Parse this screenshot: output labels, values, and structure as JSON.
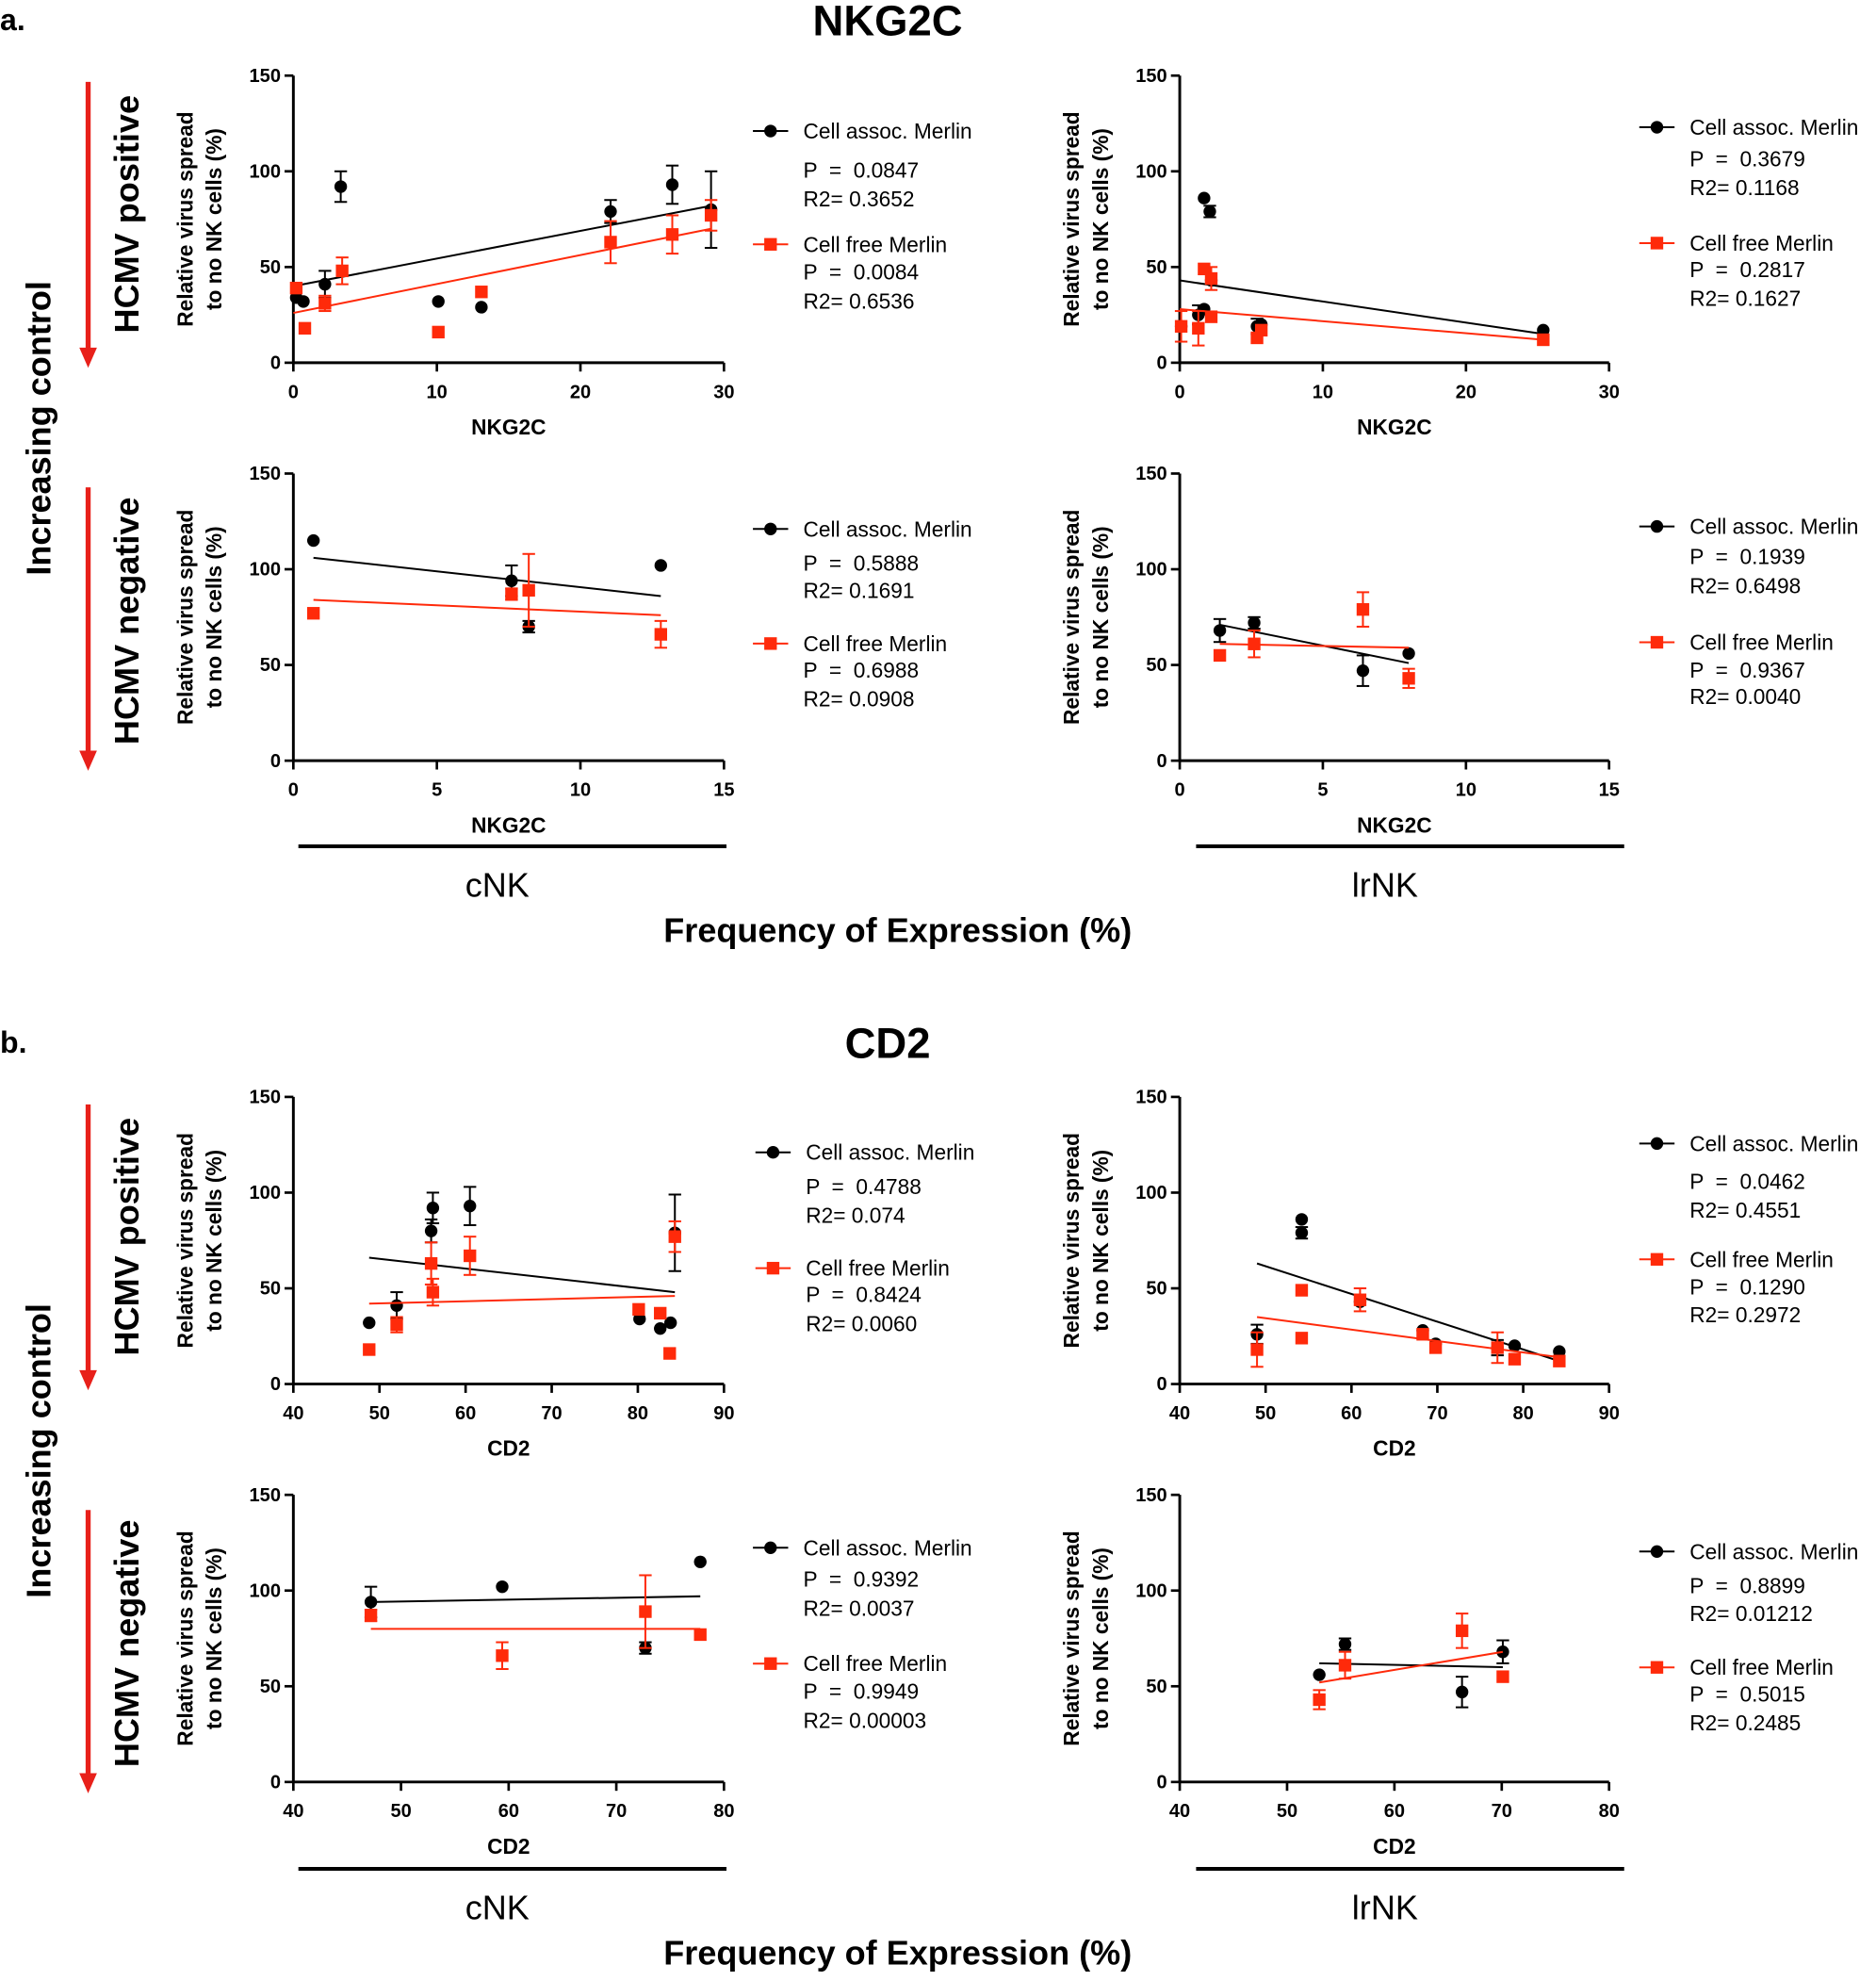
{
  "colors": {
    "cell_assoc": "#000000",
    "cell_free": "#ff2a0a",
    "arrow": "#e8201a"
  },
  "sections": [
    {
      "label": "a.",
      "title": "NKG2C",
      "groups": [
        "cNK",
        "lrNK"
      ],
      "footer": "Frequency of Expression (%)",
      "side_label": "Increasing control",
      "row_labels": [
        "HCMV positive",
        "HCMV negative"
      ]
    },
    {
      "label": "b.",
      "title": "CD2",
      "groups": [
        "cNK",
        "lrNK"
      ],
      "footer": "Frequency of Expression (%)",
      "side_label": "Increasing control",
      "row_labels": [
        "HCMV positive",
        "HCMV negative"
      ]
    }
  ],
  "chart_data": [
    {
      "type": "scatter",
      "panel": "a-cNK-HCMV-positive",
      "xlabel": "NKG2C",
      "ylabel": [
        "Relative virus spread",
        "to no NK cells (%)"
      ],
      "xlim": [
        0,
        30
      ],
      "xticks": [
        0,
        10,
        20,
        30
      ],
      "ylim": [
        0,
        150
      ],
      "yticks": [
        0,
        50,
        100,
        150
      ],
      "series": [
        {
          "name": "Cell assoc. Merlin",
          "marker": "circle",
          "P": "P  =  0.0847",
          "R2": "R2= 0.3652",
          "fit": [
            [
              0,
              40
            ],
            [
              29.1,
              82
            ]
          ],
          "points": [
            [
              0.2,
              34,
              0
            ],
            [
              0.7,
              32,
              0
            ],
            [
              2.2,
              41,
              7
            ],
            [
              3.3,
              92,
              8
            ],
            [
              10.1,
              32,
              0
            ],
            [
              13.1,
              29,
              0
            ],
            [
              22.1,
              79,
              6
            ],
            [
              26.4,
              93,
              10
            ],
            [
              29.1,
              80,
              20
            ]
          ]
        },
        {
          "name": "Cell free Merlin",
          "marker": "square",
          "P": "P  =  0.0084",
          "R2": "R2= 0.6536",
          "fit": [
            [
              0,
              26
            ],
            [
              29.1,
              70
            ]
          ],
          "points": [
            [
              0.2,
              39,
              0
            ],
            [
              0.8,
              18,
              0
            ],
            [
              2.2,
              31,
              4
            ],
            [
              3.4,
              48,
              7
            ],
            [
              10.1,
              16,
              0
            ],
            [
              13.1,
              37,
              0
            ],
            [
              22.1,
              63,
              11
            ],
            [
              26.4,
              67,
              10
            ],
            [
              29.1,
              77,
              8
            ]
          ]
        }
      ]
    },
    {
      "type": "scatter",
      "panel": "a-lrNK-HCMV-positive",
      "xlabel": "NKG2C",
      "ylabel": [
        "Relative virus spread",
        "to no NK cells (%)"
      ],
      "xlim": [
        0,
        30
      ],
      "xticks": [
        0,
        10,
        20,
        30
      ],
      "ylim": [
        0,
        150
      ],
      "yticks": [
        0,
        50,
        100,
        150
      ],
      "series": [
        {
          "name": "Cell assoc. Merlin",
          "marker": "circle",
          "P": "P  =  0.3679",
          "R2": "R2= 0.1168",
          "fit": [
            [
              0,
              43
            ],
            [
              25.4,
              15
            ]
          ],
          "points": [
            [
              0.1,
              19,
              0
            ],
            [
              1.3,
              25,
              5
            ],
            [
              1.7,
              28,
              0
            ],
            [
              1.7,
              86,
              0
            ],
            [
              2.1,
              79,
              3
            ],
            [
              2.2,
              43,
              0
            ],
            [
              5.4,
              19,
              4
            ],
            [
              5.7,
              20,
              0
            ],
            [
              25.4,
              17,
              0
            ]
          ]
        },
        {
          "name": "Cell free Merlin",
          "marker": "square",
          "P": "P  =  0.2817",
          "R2": "R2= 0.1627",
          "fit": [
            [
              0,
              28
            ],
            [
              25.4,
              12
            ]
          ],
          "points": [
            [
              0.1,
              19,
              8
            ],
            [
              1.3,
              18,
              9
            ],
            [
              1.7,
              49,
              0
            ],
            [
              2.2,
              44,
              6
            ],
            [
              2.2,
              24,
              0
            ],
            [
              5.4,
              13,
              0
            ],
            [
              5.7,
              17,
              0
            ],
            [
              25.4,
              12,
              0
            ]
          ]
        }
      ]
    },
    {
      "type": "scatter",
      "panel": "a-cNK-HCMV-negative",
      "xlabel": "NKG2C",
      "ylabel": [
        "Relative virus spread",
        "to no NK cells (%)"
      ],
      "xlim": [
        0,
        15
      ],
      "xticks": [
        0,
        5,
        10,
        15
      ],
      "ylim": [
        0,
        150
      ],
      "yticks": [
        0,
        50,
        100,
        150
      ],
      "series": [
        {
          "name": "Cell assoc. Merlin",
          "marker": "circle",
          "P": "P  =  0.5888",
          "R2": "R2= 0.1691",
          "fit": [
            [
              0.7,
              106
            ],
            [
              12.8,
              86
            ]
          ],
          "points": [
            [
              0.7,
              115,
              0
            ],
            [
              7.6,
              94,
              8
            ],
            [
              8.2,
              70,
              3
            ],
            [
              12.8,
              102,
              0
            ]
          ]
        },
        {
          "name": "Cell free Merlin",
          "marker": "square",
          "P": "P  =  0.6988",
          "R2": "R2= 0.0908",
          "fit": [
            [
              0.7,
              84
            ],
            [
              12.8,
              76
            ]
          ],
          "points": [
            [
              0.7,
              77,
              0
            ],
            [
              7.6,
              87,
              3
            ],
            [
              8.2,
              89,
              19
            ],
            [
              12.8,
              66,
              7
            ]
          ]
        }
      ]
    },
    {
      "type": "scatter",
      "panel": "a-lrNK-HCMV-negative",
      "xlabel": "NKG2C",
      "ylabel": [
        "Relative virus spread",
        "to no NK cells (%)"
      ],
      "xlim": [
        0,
        15
      ],
      "xticks": [
        0,
        5,
        10,
        15
      ],
      "ylim": [
        0,
        150
      ],
      "yticks": [
        0,
        50,
        100,
        150
      ],
      "series": [
        {
          "name": "Cell assoc. Merlin",
          "marker": "circle",
          "P": "P  =  0.1939",
          "R2": "R2= 0.6498",
          "fit": [
            [
              1.4,
              71
            ],
            [
              8,
              51
            ]
          ],
          "points": [
            [
              1.4,
              68,
              6
            ],
            [
              2.6,
              72,
              3
            ],
            [
              6.4,
              47,
              8
            ],
            [
              8,
              56,
              0
            ]
          ]
        },
        {
          "name": "Cell free Merlin",
          "marker": "square",
          "P": "P  =  0.9367",
          "R2": "R2= 0.0040",
          "fit": [
            [
              1.4,
              61
            ],
            [
              8,
              59
            ]
          ],
          "points": [
            [
              1.4,
              55,
              0
            ],
            [
              2.6,
              61,
              7
            ],
            [
              6.4,
              79,
              9
            ],
            [
              8,
              43,
              5
            ]
          ]
        }
      ]
    },
    {
      "type": "scatter",
      "panel": "b-cNK-HCMV-positive",
      "xlabel": "CD2",
      "ylabel": [
        "Relative virus spread",
        "to no NK cells (%)"
      ],
      "xlim": [
        40,
        90
      ],
      "xticks": [
        40,
        50,
        60,
        70,
        80,
        90
      ],
      "ylim": [
        0,
        150
      ],
      "yticks": [
        0,
        50,
        100,
        150
      ],
      "series": [
        {
          "name": "Cell assoc. Merlin",
          "marker": "circle",
          "P": "P  =  0.4788",
          "R2": "R2= 0.074",
          "fit": [
            [
              48.8,
              66
            ],
            [
              84.3,
              48
            ]
          ],
          "points": [
            [
              48.8,
              32,
              0
            ],
            [
              52,
              41,
              7
            ],
            [
              56,
              80,
              6
            ],
            [
              56.2,
              92,
              8
            ],
            [
              60.5,
              93,
              10
            ],
            [
              80.2,
              34,
              0
            ],
            [
              82.6,
              29,
              0
            ],
            [
              83.8,
              32,
              0
            ],
            [
              84.3,
              79,
              20
            ]
          ]
        },
        {
          "name": "Cell free Merlin",
          "marker": "square",
          "P": "P  =  0.8424",
          "R2": "R2= 0.0060",
          "fit": [
            [
              48.8,
              42
            ],
            [
              84.3,
              46
            ]
          ],
          "points": [
            [
              48.8,
              18,
              0
            ],
            [
              52,
              31,
              4
            ],
            [
              56,
              63,
              11
            ],
            [
              56.2,
              48,
              7
            ],
            [
              60.5,
              67,
              10
            ],
            [
              80.1,
              39,
              0
            ],
            [
              82.6,
              37,
              0
            ],
            [
              83.7,
              16,
              0
            ],
            [
              84.3,
              77,
              8
            ]
          ]
        }
      ]
    },
    {
      "type": "scatter",
      "panel": "b-lrNK-HCMV-positive",
      "xlabel": "CD2",
      "ylabel": [
        "Relative virus spread",
        "to no NK cells (%)"
      ],
      "xlim": [
        40,
        90
      ],
      "xticks": [
        40,
        50,
        60,
        70,
        80,
        90
      ],
      "ylim": [
        0,
        150
      ],
      "yticks": [
        0,
        50,
        100,
        150
      ],
      "series": [
        {
          "name": "Cell assoc. Merlin",
          "marker": "circle",
          "P": "P  =  0.0462",
          "R2": "R2= 0.4551",
          "fit": [
            [
              49,
              63
            ],
            [
              84.2,
              12
            ]
          ],
          "points": [
            [
              49,
              26,
              5
            ],
            [
              54.2,
              86,
              0
            ],
            [
              54.2,
              79,
              3
            ],
            [
              61,
              43,
              0
            ],
            [
              68.3,
              28,
              0
            ],
            [
              69.8,
              21,
              0
            ],
            [
              77,
              19,
              4
            ],
            [
              79,
              20,
              0
            ],
            [
              84.2,
              17,
              0
            ]
          ]
        },
        {
          "name": "Cell free Merlin",
          "marker": "square",
          "P": "P  =  0.1290",
          "R2": "R2= 0.2972",
          "fit": [
            [
              49,
              35
            ],
            [
              84.2,
              14
            ]
          ],
          "points": [
            [
              49,
              18,
              9
            ],
            [
              54.2,
              49,
              0
            ],
            [
              54.2,
              24,
              0
            ],
            [
              61,
              44,
              6
            ],
            [
              68.3,
              26,
              0
            ],
            [
              69.8,
              19,
              0
            ],
            [
              77,
              19,
              8
            ],
            [
              79,
              13,
              0
            ],
            [
              84.2,
              12,
              0
            ]
          ]
        }
      ]
    },
    {
      "type": "scatter",
      "panel": "b-cNK-HCMV-negative",
      "xlabel": "CD2",
      "ylabel": [
        "Relative virus spread",
        "to no NK cells (%)"
      ],
      "xlim": [
        40,
        80
      ],
      "xticks": [
        40,
        50,
        60,
        70,
        80
      ],
      "ylim": [
        0,
        150
      ],
      "yticks": [
        0,
        50,
        100,
        150
      ],
      "series": [
        {
          "name": "Cell assoc. Merlin",
          "marker": "circle",
          "P": "P  =  0.9392",
          "R2": "R2= 0.0037",
          "fit": [
            [
              47.2,
              94
            ],
            [
              77.8,
              97
            ]
          ],
          "points": [
            [
              47.2,
              94,
              8
            ],
            [
              59.4,
              102,
              0
            ],
            [
              72.7,
              70,
              3
            ],
            [
              77.8,
              115,
              0
            ]
          ]
        },
        {
          "name": "Cell free Merlin",
          "marker": "square",
          "P": "P  =  0.9949",
          "R2": "R2= 0.00003",
          "fit": [
            [
              47.2,
              80
            ],
            [
              77.8,
              80
            ]
          ],
          "points": [
            [
              47.2,
              87,
              3
            ],
            [
              59.4,
              66,
              7
            ],
            [
              72.7,
              89,
              19
            ],
            [
              77.8,
              77,
              0
            ]
          ]
        }
      ]
    },
    {
      "type": "scatter",
      "panel": "b-lrNK-HCMV-negative",
      "xlabel": "CD2",
      "ylabel": [
        "Relative virus spread",
        "to no NK cells (%)"
      ],
      "xlim": [
        40,
        80
      ],
      "xticks": [
        40,
        50,
        60,
        70,
        80
      ],
      "ylim": [
        0,
        150
      ],
      "yticks": [
        0,
        50,
        100,
        150
      ],
      "series": [
        {
          "name": "Cell assoc. Merlin",
          "marker": "circle",
          "P": "P  =  0.8899",
          "R2": "R2= 0.01212",
          "fit": [
            [
              53,
              62
            ],
            [
              70.1,
              60
            ]
          ],
          "points": [
            [
              53,
              56,
              0
            ],
            [
              55.4,
              72,
              3
            ],
            [
              66.3,
              47,
              8
            ],
            [
              70.1,
              68,
              6
            ]
          ]
        },
        {
          "name": "Cell free Merlin",
          "marker": "square",
          "P": "P  =  0.5015",
          "R2": "R2= 0.2485",
          "fit": [
            [
              53,
              52
            ],
            [
              70.1,
              68
            ]
          ],
          "points": [
            [
              53,
              43,
              5
            ],
            [
              55.4,
              61,
              7
            ],
            [
              66.3,
              79,
              9
            ],
            [
              70.1,
              55,
              0
            ]
          ]
        }
      ]
    }
  ]
}
